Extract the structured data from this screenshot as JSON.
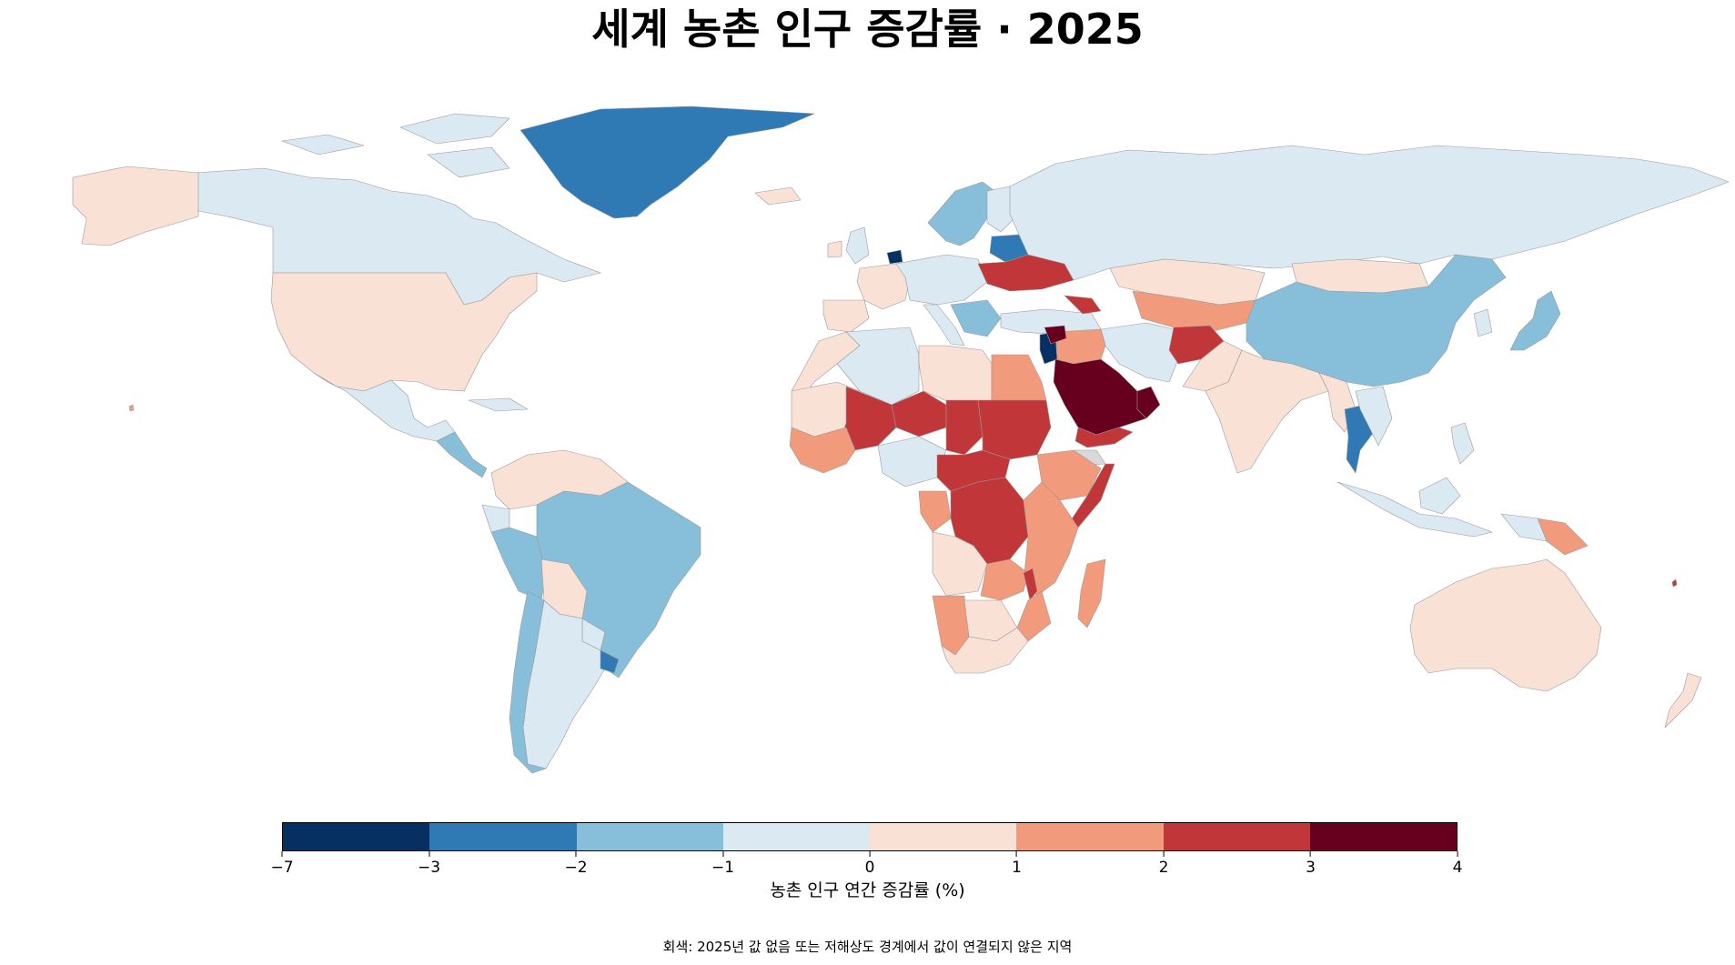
{
  "title": "세계 농촌 인구 증감률 · 2025",
  "colorbar": {
    "label": "농촌 인구 연간 증감률 (%)",
    "ticks": [
      "−7",
      "−3",
      "−2",
      "−1",
      "0",
      "1",
      "2",
      "3",
      "4"
    ],
    "bins": [
      {
        "range": [
          -7,
          -3
        ],
        "color": "#053061"
      },
      {
        "range": [
          -3,
          -2
        ],
        "color": "#2f79b5"
      },
      {
        "range": [
          -2,
          -1
        ],
        "color": "#87beda"
      },
      {
        "range": [
          -1,
          0
        ],
        "color": "#dbe9f2"
      },
      {
        "range": [
          0,
          1
        ],
        "color": "#f9e1d5"
      },
      {
        "range": [
          1,
          2
        ],
        "color": "#f19b7c"
      },
      {
        "range": [
          2,
          3
        ],
        "color": "#c13739"
      },
      {
        "range": [
          3,
          4
        ],
        "color": "#67001f"
      }
    ],
    "no_data_color": "#d9d9d9"
  },
  "footnote": "회색: 2025년 값 없음 또는 저해상도 경계에서 값이 연결되지 않은 지역",
  "map_data": {
    "type": "choropleth",
    "metric": "rural population annual growth rate (%)",
    "regions": [
      {
        "name": "Greenland",
        "bin": "-3 to -2"
      },
      {
        "name": "Canada",
        "bin": "-1 to 0"
      },
      {
        "name": "Alaska / United States",
        "bin": "0 to 1"
      },
      {
        "name": "Mexico",
        "bin": "-1 to 0"
      },
      {
        "name": "Brazil",
        "bin": "-2 to -1"
      },
      {
        "name": "Peru",
        "bin": "-2 to -1"
      },
      {
        "name": "Bolivia",
        "bin": "0 to 1"
      },
      {
        "name": "Argentina",
        "bin": "-1 to 0"
      },
      {
        "name": "Chile",
        "bin": "-2 to -1"
      },
      {
        "name": "Russia",
        "bin": "-1 to 0"
      },
      {
        "name": "Scandinavia",
        "bin": "-2 to -1"
      },
      {
        "name": "Europe",
        "bin": "-1 to 0"
      },
      {
        "name": "Netherlands",
        "bin": "-7 to -3"
      },
      {
        "name": "Belarus",
        "bin": "-3 to -2"
      },
      {
        "name": "Ukraine",
        "bin": "2 to 3"
      },
      {
        "name": "Kazakhstan",
        "bin": "0 to 1"
      },
      {
        "name": "Central Asia",
        "bin": "1 to 2"
      },
      {
        "name": "Afghanistan",
        "bin": "2 to 3"
      },
      {
        "name": "China",
        "bin": "-2 to -1"
      },
      {
        "name": "Mongolia",
        "bin": "0 to 1"
      },
      {
        "name": "India",
        "bin": "0 to 1"
      },
      {
        "name": "Thailand",
        "bin": "-3 to -2"
      },
      {
        "name": "Japan",
        "bin": "-2 to -1"
      },
      {
        "name": "Saudi Arabia",
        "bin": "3 to 4"
      },
      {
        "name": "Jordan",
        "bin": "-7 to -3"
      },
      {
        "name": "Yemen",
        "bin": "2 to 3"
      },
      {
        "name": "Somalia",
        "bin": "2 to 3"
      },
      {
        "name": "Egypt",
        "bin": "1 to 2"
      },
      {
        "name": "Libya / Algeria",
        "bin": "0 to 1"
      },
      {
        "name": "Sahel (Mali, Niger, Chad)",
        "bin": "2 to 3"
      },
      {
        "name": "Sudan",
        "bin": "2 to 3"
      },
      {
        "name": "East Africa",
        "bin": "1 to 2"
      },
      {
        "name": "DR Congo",
        "bin": "2 to 3"
      },
      {
        "name": "Angola",
        "bin": "0 to 1"
      },
      {
        "name": "Namibia",
        "bin": "1 to 2"
      },
      {
        "name": "South Africa",
        "bin": "0 to 1"
      },
      {
        "name": "Madagascar",
        "bin": "1 to 2"
      },
      {
        "name": "Papua New Guinea",
        "bin": "1 to 2"
      },
      {
        "name": "Australia",
        "bin": "0 to 1"
      },
      {
        "name": "New Zealand",
        "bin": "0 to 1"
      },
      {
        "name": "Eritrea (no data)",
        "bin": "none"
      }
    ]
  }
}
